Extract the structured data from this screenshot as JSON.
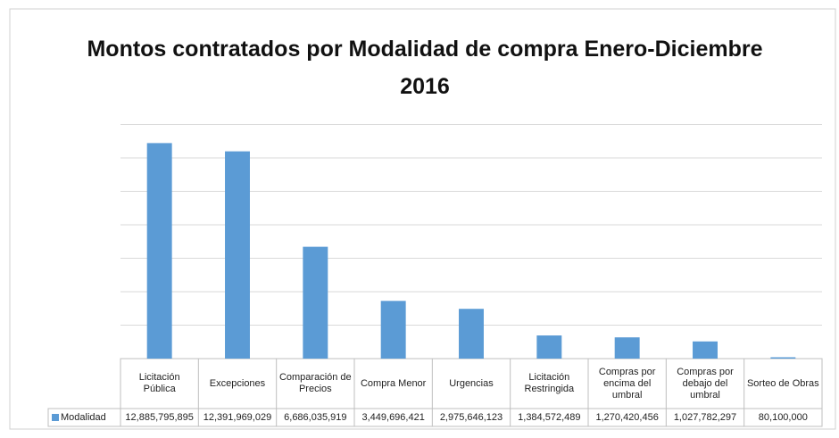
{
  "chart_data": {
    "type": "bar",
    "title": "Montos contratados por Modalidad de compra Enero-Diciembre 2016",
    "categories": [
      "Licitación Pública",
      "Excepciones",
      "Comparación de Precios",
      "Compra Menor",
      "Urgencias",
      "Licitación Restringida",
      "Compras por encima del umbral",
      "Compras por debajo del umbral",
      "Sorteo de Obras"
    ],
    "series": [
      {
        "name": "Modalidad",
        "color": "#5b9bd5",
        "values": [
          12885795895,
          12391969029,
          6686035919,
          3449696421,
          2975646123,
          1384572489,
          1270420456,
          1027782297,
          80100000
        ],
        "value_labels": [
          "12,885,795,895",
          "12,391,969,029",
          "6,686,035,919",
          "3,449,696,421",
          "2,975,646,123",
          "1,384,572,489",
          "1,270,420,456",
          "1,027,782,297",
          "80,100,000"
        ]
      }
    ],
    "ylim": [
      0,
      14000000000
    ],
    "yticks": [
      0,
      2000000000,
      4000000000,
      6000000000,
      8000000000,
      10000000000,
      12000000000,
      14000000000
    ],
    "grid": true
  }
}
